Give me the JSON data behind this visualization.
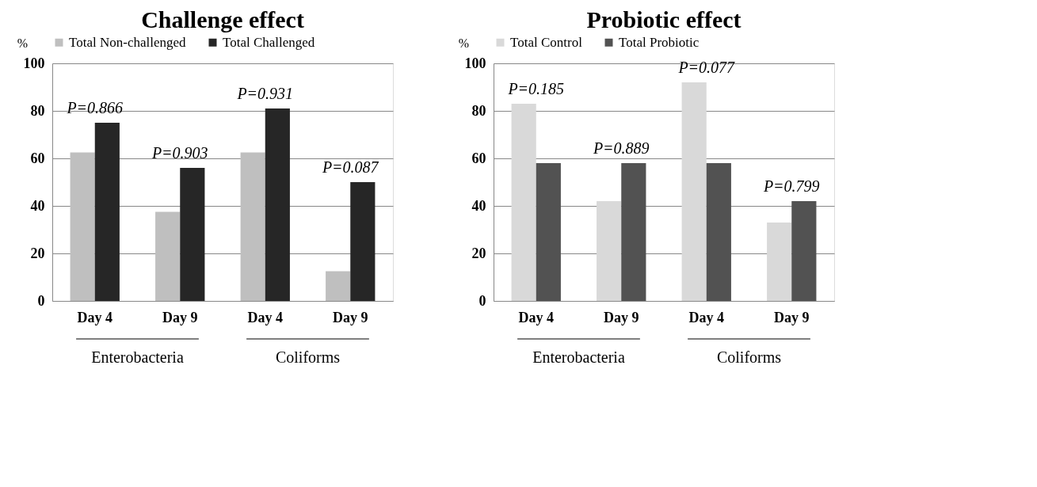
{
  "chart_data": [
    {
      "type": "bar",
      "title": "Challenge effect",
      "ylabel": "%",
      "categories": [
        "Day 4",
        "Day 9",
        "Day 4",
        "Day 9"
      ],
      "series": [
        {
          "name": "Total Non-challenged",
          "color": "#bfbfbf",
          "values": [
            62.5,
            37.5,
            62.5,
            12.5
          ]
        },
        {
          "name": "Total Challenged",
          "color": "#262626",
          "values": [
            75,
            56,
            81,
            50
          ]
        }
      ],
      "ylim": [
        0,
        100
      ],
      "yticks": [
        0,
        20,
        40,
        60,
        80,
        100
      ],
      "grid": "y",
      "legend": "top",
      "annotations": [
        "P=0.866",
        "P=0.903",
        "P=0.931",
        "P=0.087",
        "Enterobacteria",
        "Coliforms"
      ]
    },
    {
      "type": "bar",
      "title": "Probiotic effect",
      "ylabel": "%",
      "categories": [
        "Day 4",
        "Day 9",
        "Day 4",
        "Day 9"
      ],
      "series": [
        {
          "name": "Total Control",
          "color": "#d9d9d9",
          "values": [
            83,
            42,
            92,
            33
          ]
        },
        {
          "name": "Total Probiotic",
          "color": "#525252",
          "values": [
            58,
            58,
            58,
            42
          ]
        }
      ],
      "ylim": [
        0,
        100
      ],
      "yticks": [
        0,
        20,
        40,
        60,
        80,
        100
      ],
      "grid": "y",
      "legend": "top",
      "annotations": [
        "P=0.185",
        "P=0.889",
        "P=0.077",
        "P=0.799",
        "Enterobacteria",
        "Coliforms"
      ]
    }
  ]
}
